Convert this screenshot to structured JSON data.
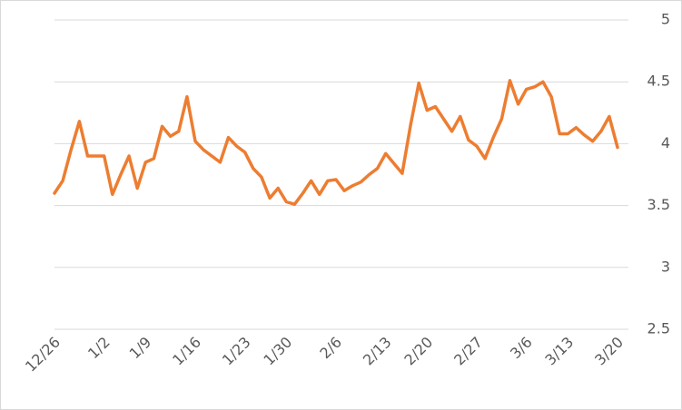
{
  "chart_data": {
    "type": "line",
    "categories": [
      "12/26",
      null,
      null,
      null,
      null,
      null,
      "1/2",
      null,
      null,
      null,
      null,
      "1/9",
      null,
      null,
      null,
      null,
      null,
      "1/16",
      null,
      null,
      null,
      null,
      null,
      "1/23",
      null,
      null,
      null,
      null,
      "1/30",
      null,
      null,
      null,
      null,
      null,
      "2/6",
      null,
      null,
      null,
      null,
      null,
      "2/13",
      null,
      null,
      null,
      null,
      "2/20",
      null,
      null,
      null,
      null,
      null,
      "2/27",
      null,
      null,
      null,
      null,
      null,
      "3/6",
      null,
      null,
      null,
      null,
      "3/13",
      null,
      null,
      null,
      null,
      null,
      "3/20"
    ],
    "series": [
      {
        "name": null,
        "color": "#ed7d31",
        "values": [
          3.6,
          3.7,
          3.95,
          4.18,
          3.9,
          3.9,
          3.9,
          3.59,
          3.75,
          3.9,
          3.64,
          3.85,
          3.88,
          4.14,
          4.06,
          4.1,
          4.38,
          4.02,
          3.95,
          3.9,
          3.85,
          4.05,
          3.98,
          3.93,
          3.8,
          3.73,
          3.56,
          3.64,
          3.53,
          3.51,
          3.6,
          3.7,
          3.59,
          3.7,
          3.71,
          3.62,
          3.66,
          3.69,
          3.75,
          3.8,
          3.92,
          3.84,
          3.76,
          4.15,
          4.49,
          4.27,
          4.3,
          4.2,
          4.1,
          4.22,
          4.03,
          3.98,
          3.88,
          4.05,
          4.2,
          4.51,
          4.32,
          4.44,
          4.46,
          4.5,
          4.38,
          4.08,
          4.08,
          4.13,
          4.07,
          4.02,
          4.1,
          4.22,
          3.97
        ]
      }
    ],
    "ylim": [
      2.5,
      5
    ],
    "yticks": [
      2.5,
      3,
      3.5,
      4,
      4.5,
      5
    ],
    "grid": true
  }
}
